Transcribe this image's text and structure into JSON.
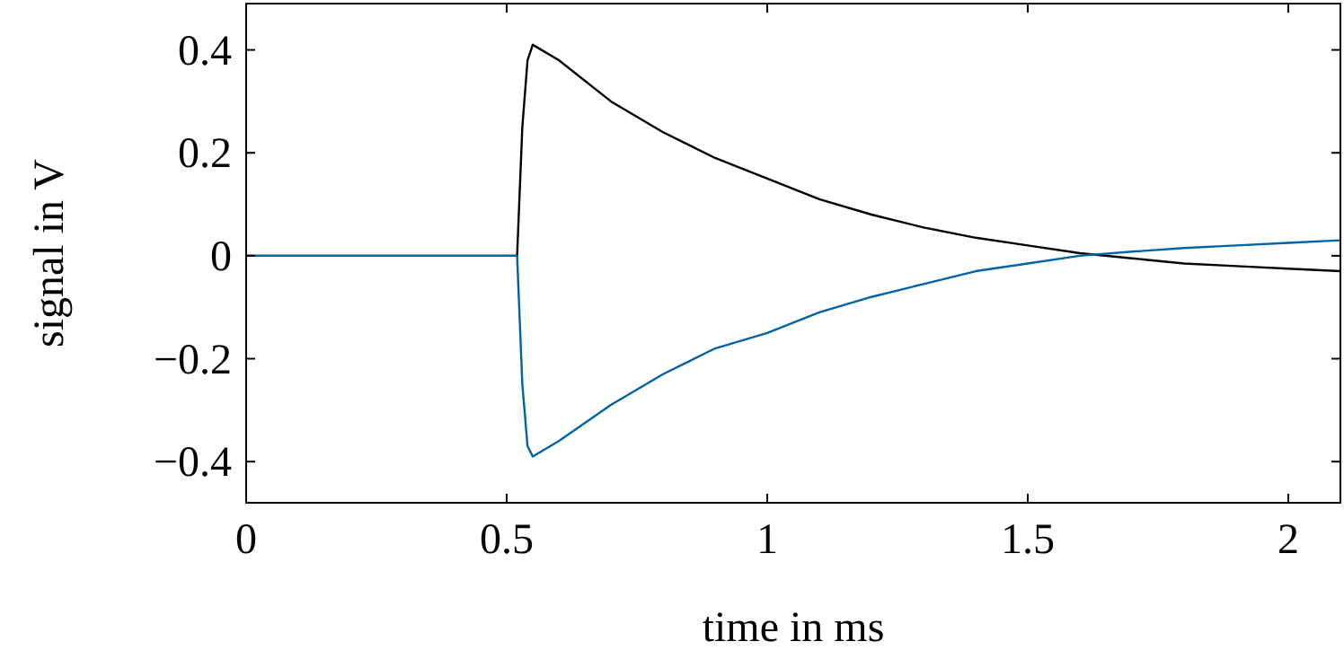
{
  "chart_data": {
    "type": "line",
    "xlabel": "time in ms",
    "ylabel": "signal in V",
    "xlim": [
      0,
      2.1
    ],
    "ylim": [
      -0.48,
      0.49
    ],
    "xticks": [
      0,
      0.5,
      1,
      1.5,
      2
    ],
    "yticks": [
      {
        "value": -0.4,
        "label": "−0.4"
      },
      {
        "value": -0.2,
        "label": "−0.2"
      },
      0,
      0.2,
      0.4
    ],
    "grid": false,
    "line_style": "solid",
    "series": [
      {
        "color": "#000000",
        "x": [
          0,
          0.1,
          0.2,
          0.3,
          0.4,
          0.5,
          0.52,
          0.53,
          0.54,
          0.55,
          0.6,
          0.7,
          0.8,
          0.9,
          1.0,
          1.1,
          1.2,
          1.3,
          1.4,
          1.5,
          1.6,
          1.7,
          1.8,
          1.9,
          2.0,
          2.1
        ],
        "values": [
          0,
          0,
          0,
          0,
          0,
          0,
          0,
          0.25,
          0.38,
          0.41,
          0.38,
          0.3,
          0.24,
          0.19,
          0.15,
          0.11,
          0.08,
          0.055,
          0.035,
          0.02,
          0.005,
          -0.005,
          -0.015,
          -0.02,
          -0.025,
          -0.03
        ]
      },
      {
        "color": "#0063a6",
        "x": [
          0,
          0.1,
          0.2,
          0.3,
          0.4,
          0.5,
          0.52,
          0.53,
          0.54,
          0.55,
          0.6,
          0.7,
          0.8,
          0.9,
          1.0,
          1.1,
          1.2,
          1.3,
          1.4,
          1.5,
          1.6,
          1.7,
          1.8,
          1.9,
          2.0,
          2.1
        ],
        "values": [
          0,
          0,
          0,
          0,
          0,
          0,
          0,
          -0.25,
          -0.37,
          -0.39,
          -0.36,
          -0.29,
          -0.23,
          -0.18,
          -0.15,
          -0.11,
          -0.08,
          -0.055,
          -0.03,
          -0.015,
          0,
          0.008,
          0.015,
          0.02,
          0.025,
          0.03
        ]
      }
    ]
  }
}
